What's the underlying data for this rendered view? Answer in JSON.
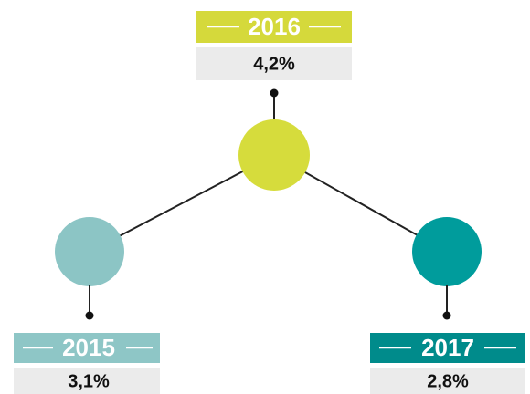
{
  "nodes": [
    {
      "label": "2015",
      "value": "3,1%"
    },
    {
      "label": "2016",
      "value": "4,2%"
    },
    {
      "label": "2017",
      "value": "2,8%"
    }
  ]
}
